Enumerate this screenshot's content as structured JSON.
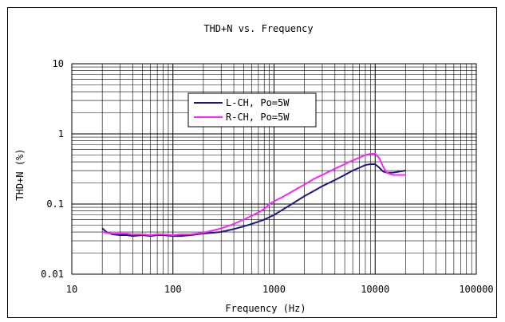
{
  "chart_data": {
    "type": "line",
    "title": "THD+N vs. Frequency",
    "xlabel": "Frequency (Hz)",
    "ylabel": "THD+N (%)",
    "x_scale": "log",
    "y_scale": "log",
    "xlim": [
      10,
      100000
    ],
    "ylim": [
      0.01,
      10
    ],
    "x_ticks": [
      10,
      100,
      1000,
      10000,
      100000
    ],
    "x_tick_labels": [
      "10",
      "100",
      "1000",
      "10000",
      "100000"
    ],
    "y_ticks": [
      0.01,
      0.1,
      1,
      10
    ],
    "y_tick_labels": [
      "0.01",
      "0.1",
      "1",
      "10"
    ],
    "grid": true,
    "legend_position": "upper-center",
    "series": [
      {
        "name": "L-CH, Po=5W",
        "color": "#1a1a7a",
        "x": [
          20,
          22,
          25,
          30,
          35,
          40,
          50,
          60,
          70,
          80,
          100,
          120,
          150,
          200,
          250,
          300,
          400,
          500,
          600,
          700,
          800,
          1000,
          1200,
          1500,
          2000,
          2500,
          3000,
          4000,
          5000,
          6000,
          7000,
          8000,
          9000,
          10000,
          11000,
          12000,
          13000,
          15000,
          20000
        ],
        "y": [
          0.045,
          0.04,
          0.037,
          0.036,
          0.036,
          0.035,
          0.036,
          0.035,
          0.036,
          0.036,
          0.035,
          0.035,
          0.036,
          0.038,
          0.039,
          0.04,
          0.044,
          0.048,
          0.052,
          0.056,
          0.06,
          0.07,
          0.082,
          0.1,
          0.13,
          0.155,
          0.18,
          0.22,
          0.26,
          0.3,
          0.33,
          0.36,
          0.37,
          0.37,
          0.33,
          0.29,
          0.28,
          0.28,
          0.3
        ]
      },
      {
        "name": "R-CH, Po=5W",
        "color": "#ff22ff",
        "x": [
          20,
          22,
          25,
          30,
          35,
          40,
          50,
          60,
          70,
          80,
          100,
          120,
          150,
          200,
          250,
          300,
          400,
          500,
          600,
          700,
          800,
          900,
          1000,
          1200,
          1500,
          2000,
          2500,
          3000,
          4000,
          5000,
          6000,
          7000,
          8000,
          9000,
          10000,
          11000,
          12000,
          13000,
          15000,
          20000
        ],
        "y": [
          0.04,
          0.039,
          0.038,
          0.038,
          0.038,
          0.037,
          0.037,
          0.036,
          0.037,
          0.037,
          0.036,
          0.037,
          0.037,
          0.039,
          0.042,
          0.045,
          0.052,
          0.06,
          0.068,
          0.076,
          0.085,
          0.1,
          0.11,
          0.125,
          0.15,
          0.19,
          0.23,
          0.26,
          0.32,
          0.37,
          0.42,
          0.46,
          0.5,
          0.52,
          0.52,
          0.45,
          0.34,
          0.28,
          0.26,
          0.26
        ]
      }
    ]
  }
}
